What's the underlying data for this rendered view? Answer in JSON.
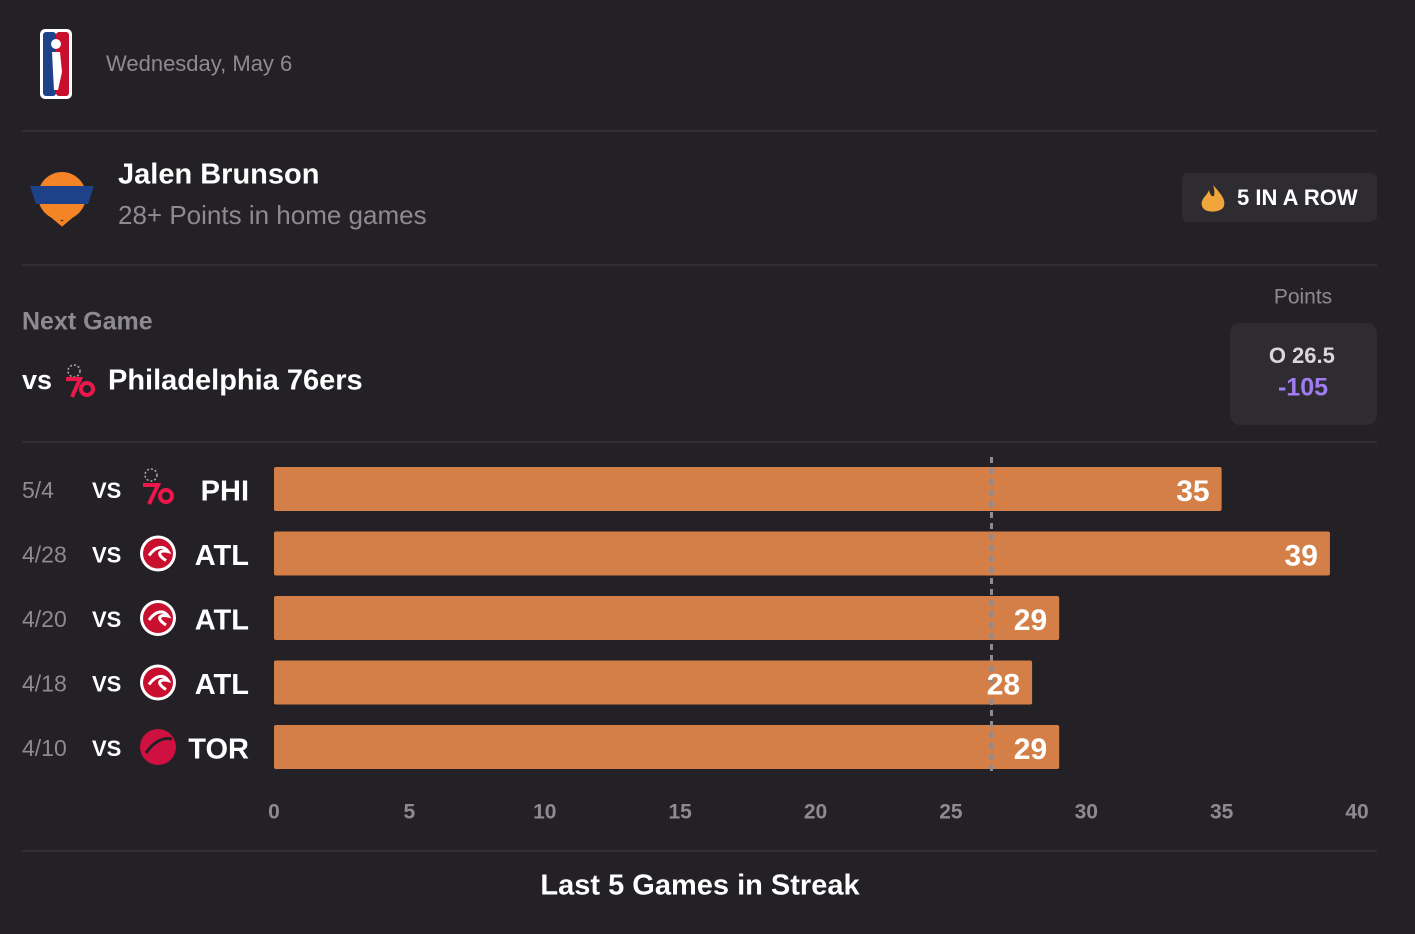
{
  "header": {
    "date": "Wednesday, May 6"
  },
  "player": {
    "name": "Jalen Brunson",
    "prop": "28+ Points in home games",
    "streak": "5 IN A ROW"
  },
  "next_game": {
    "label": "Next Game",
    "prefix": "vs",
    "opponent": "Philadelphia 76ers",
    "market": "Points",
    "line": {
      "side": "O",
      "value": 26.5
    },
    "odds": "-105"
  },
  "chart_data": {
    "type": "bar",
    "orientation": "horizontal",
    "title": "Last 5 Games in Streak",
    "categories": [
      "5/4",
      "4/28",
      "4/20",
      "4/18",
      "4/10"
    ],
    "venues": [
      "VS",
      "VS",
      "VS",
      "VS",
      "VS"
    ],
    "opponents": [
      "PHI",
      "ATL",
      "ATL",
      "ATL",
      "TOR"
    ],
    "values": [
      35,
      39,
      29,
      28,
      29
    ],
    "color": "#d47f48",
    "xlim": [
      0,
      40
    ],
    "xticks": [
      0,
      5,
      10,
      15,
      20,
      25,
      30,
      35,
      40
    ]
  }
}
